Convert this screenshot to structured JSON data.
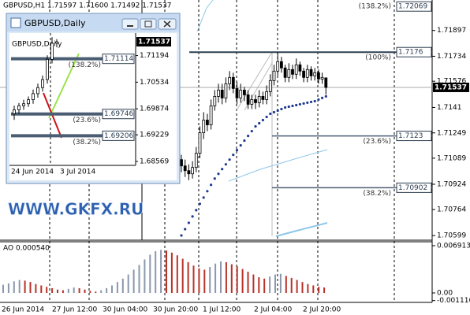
{
  "chart_data": {
    "type": "candlestick",
    "title": "GBPUSD,H1  1.71597 1.71600 1.71492 1.71537",
    "x_labels": [
      "26 Jun 2014",
      "27 Jun 12:00",
      "30 Jun 04:00",
      "30 Jun 20:00",
      "1 Jul 12:00",
      "2 Jul 04:00",
      "2 Jul 20:00"
    ],
    "open": [
      1.7108,
      1.7104,
      1.7101,
      1.7099,
      1.7103,
      1.7112,
      1.7125,
      1.7133,
      1.713,
      1.7142,
      1.7148,
      1.7152,
      1.7147,
      1.7156,
      1.716,
      1.7153,
      1.7147,
      1.7152,
      1.7149,
      1.7143,
      1.7146,
      1.7144,
      1.7148,
      1.7146,
      1.7151,
      1.7158,
      1.7164,
      1.717,
      1.7166,
      1.716,
      1.7165,
      1.7162,
      1.7168,
      1.7164,
      1.716,
      1.7165,
      1.7161,
      1.7163,
      1.7159,
      1.71597
    ],
    "high": [
      1.7111,
      1.7108,
      1.7105,
      1.7107,
      1.7116,
      1.7129,
      1.7138,
      1.7137,
      1.7146,
      1.7152,
      1.7156,
      1.7156,
      1.716,
      1.7164,
      1.7163,
      1.7157,
      1.7156,
      1.7154,
      1.7152,
      1.7149,
      1.7149,
      1.7152,
      1.7151,
      1.7155,
      1.7162,
      1.7168,
      1.7176,
      1.7173,
      1.7168,
      1.7169,
      1.7168,
      1.7172,
      1.717,
      1.7166,
      1.7168,
      1.7167,
      1.7166,
      1.7165,
      1.7163,
      1.716
    ],
    "low": [
      1.71,
      1.7097,
      1.7095,
      1.7096,
      1.71,
      1.7109,
      1.7121,
      1.7126,
      1.7127,
      1.7139,
      1.7144,
      1.7143,
      1.7144,
      1.7152,
      1.715,
      1.7143,
      1.7144,
      1.7145,
      1.714,
      1.714,
      1.714,
      1.7141,
      1.7143,
      1.7143,
      1.7148,
      1.7155,
      1.7161,
      1.7163,
      1.7157,
      1.7157,
      1.7159,
      1.7159,
      1.7161,
      1.7157,
      1.7157,
      1.7158,
      1.7158,
      1.7156,
      1.7156,
      1.71492
    ],
    "close": [
      1.7104,
      1.7101,
      1.7099,
      1.7103,
      1.7112,
      1.7125,
      1.7133,
      1.713,
      1.7142,
      1.7148,
      1.7152,
      1.7147,
      1.7156,
      1.716,
      1.7153,
      1.7147,
      1.7152,
      1.7149,
      1.7143,
      1.7146,
      1.7144,
      1.7148,
      1.7146,
      1.7151,
      1.7158,
      1.7164,
      1.717,
      1.7166,
      1.716,
      1.7165,
      1.7162,
      1.7168,
      1.7164,
      1.716,
      1.7165,
      1.7161,
      1.7163,
      1.7159,
      1.716,
      1.71537
    ],
    "sar": [
      1.706,
      1.7064,
      1.7068,
      1.7072,
      1.7076,
      1.708,
      1.7084,
      1.7088,
      1.7092,
      1.7096,
      1.7099,
      1.7102,
      1.7105,
      1.7108,
      1.7111,
      1.7114,
      1.7117,
      1.712,
      1.7123,
      1.7126,
      1.7129,
      1.7131,
      1.7133,
      1.7135,
      1.7137,
      1.7138,
      1.7139,
      1.714,
      1.7141,
      1.71415,
      1.7142,
      1.71425,
      1.7143,
      1.71435,
      1.7144,
      1.71445,
      1.7145,
      1.7146,
      1.7147,
      1.7148
    ],
    "sar_color": "#1f3a93",
    "ylim": [
      1.7057,
      1.7209
    ],
    "yticks": [
      1.71897,
      1.71734,
      1.71576,
      1.7141,
      1.71249,
      1.71089,
      1.70924,
      1.70764,
      1.70599
    ],
    "fib_levels": [
      {
        "label": "(138.2%)",
        "value": 1.72069
      },
      {
        "label": "(100%)",
        "value": 1.7176
      },
      {
        "label": "(23.6%)",
        "value": 1.7123
      },
      {
        "label": "(38.2%)",
        "value": 1.70902
      }
    ],
    "indicator": {
      "type": "bar",
      "title": "AO 0.000540",
      "up_color": "#8a97ad",
      "down_color": "#b83228",
      "values": [
        0.0012,
        0.0014,
        0.0017,
        0.0019,
        0.0018,
        0.0016,
        0.0013,
        0.0011,
        0.0009,
        0.0007,
        0.0005,
        0.0004,
        0.0006,
        0.0008,
        0.0007,
        0.0005,
        0.0003,
        0.0002,
        0.0004,
        0.0007,
        0.0011,
        0.0016,
        0.0021,
        0.0027,
        0.0034,
        0.0041,
        0.0049,
        0.0056,
        0.0061,
        0.0063,
        0.0062,
        0.0059,
        0.0055,
        0.005,
        0.0045,
        0.004,
        0.0036,
        0.0034,
        0.0038,
        0.0043,
        0.0046,
        0.0045,
        0.0042,
        0.0039,
        0.0035,
        0.0031,
        0.0027,
        0.0023,
        0.0021,
        0.0024,
        0.0027,
        0.0028,
        0.0025,
        0.0022,
        0.0019,
        0.0016,
        0.0013,
        0.0011,
        0.0009,
        0.0008
      ],
      "ylim": [
        -0.00138,
        0.00737
      ],
      "yticks": [
        0.006913,
        {
          "value": 0,
          "label": "0.00"
        },
        -0.001116
      ]
    }
  },
  "inset": {
    "window_title": "GBPUSD,Daily",
    "chart_data": {
      "type": "candlestick",
      "title": "GBPUSD,Daily",
      "x_labels": [
        "24 Jun 2014",
        "3 Jul 2014"
      ],
      "open": [
        1.6975,
        1.6985,
        1.6995,
        1.7,
        1.701,
        1.7025,
        1.704,
        1.706,
        1.711,
        1.715
      ],
      "high": [
        1.6995,
        1.7002,
        1.701,
        1.7018,
        1.7035,
        1.705,
        1.707,
        1.712,
        1.7165,
        1.716
      ],
      "low": [
        1.696,
        1.6975,
        1.6985,
        1.6992,
        1.7,
        1.7015,
        1.703,
        1.705,
        1.71,
        1.714
      ],
      "close": [
        1.6985,
        1.6995,
        1.7,
        1.701,
        1.7025,
        1.704,
        1.706,
        1.711,
        1.715,
        1.71537
      ],
      "ylim": [
        1.68432,
        1.71635
      ],
      "yticks": [
        1.71194,
        1.70534,
        1.69874,
        1.69229,
        1.68569
      ],
      "fib_levels": [
        {
          "label": "(138.2%)",
          "value": 1.71114
        },
        {
          "label": "(23.6%)",
          "value": 1.69746
        },
        {
          "label": "(38.2%)",
          "value": 1.69206
        }
      ]
    }
  },
  "watermark": "WWW.GKFX.RU"
}
